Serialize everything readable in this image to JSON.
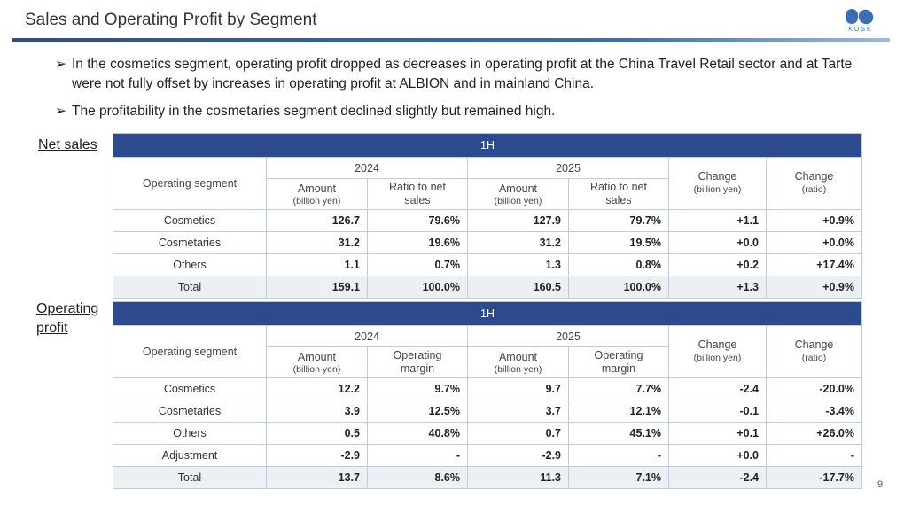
{
  "slide": {
    "title": "Sales and Operating Profit by Segment",
    "page_number": "9",
    "logo_text": "KOSÉ"
  },
  "bullets": [
    "In the cosmetics segment, operating profit dropped as decreases in operating profit at the China Travel Retail sector and at Tarte were not fully offset by increases in operating profit at ALBION and in mainland China.",
    "The profitability in the cosmetaries segment declined slightly but remained high."
  ],
  "bullet_marker": "➢",
  "net_sales": {
    "label": "Net sales",
    "band": "1H",
    "segment_header": "Operating segment",
    "years": [
      "2024",
      "2025"
    ],
    "amount_label": "Amount",
    "amount_unit": "(billion yen)",
    "ratio_label": "Ratio to net sales",
    "change_label": "Change",
    "change_unit": "(billion yen)",
    "change_ratio_label": "Change",
    "change_ratio_unit": "(ratio)",
    "rows": [
      [
        "Cosmetics",
        "126.7",
        "79.6%",
        "127.9",
        "79.7%",
        "+1.1",
        "+0.9%"
      ],
      [
        "Cosmetaries",
        "31.2",
        "19.6%",
        "31.2",
        "19.5%",
        "+0.0",
        "+0.0%"
      ],
      [
        "Others",
        "1.1",
        "0.7%",
        "1.3",
        "0.8%",
        "+0.2",
        "+17.4%"
      ],
      [
        "Total",
        "159.1",
        "100.0%",
        "160.5",
        "100.0%",
        "+1.3",
        "+0.9%"
      ]
    ]
  },
  "operating_profit": {
    "label": "Operating profit",
    "band": "1H",
    "segment_header": "Operating segment",
    "years": [
      "2024",
      "2025"
    ],
    "amount_label": "Amount",
    "amount_unit": "(billion yen)",
    "ratio_label": "Operating margin",
    "change_label": "Change",
    "change_unit": "(billion yen)",
    "change_ratio_label": "Change",
    "change_ratio_unit": "(ratio)",
    "rows": [
      [
        "Cosmetics",
        "12.2",
        "9.7%",
        "9.7",
        "7.7%",
        "-2.4",
        "-20.0%"
      ],
      [
        "Cosmetaries",
        "3.9",
        "12.5%",
        "3.7",
        "12.1%",
        "-0.1",
        "-3.4%"
      ],
      [
        "Others",
        "0.5",
        "40.8%",
        "0.7",
        "45.1%",
        "+0.1",
        "+26.0%"
      ],
      [
        "Adjustment",
        "-2.9",
        "-",
        "-2.9",
        "-",
        "+0.0",
        "-"
      ],
      [
        "Total",
        "13.7",
        "8.6%",
        "11.3",
        "7.1%",
        "-2.4",
        "-17.7%"
      ]
    ]
  }
}
